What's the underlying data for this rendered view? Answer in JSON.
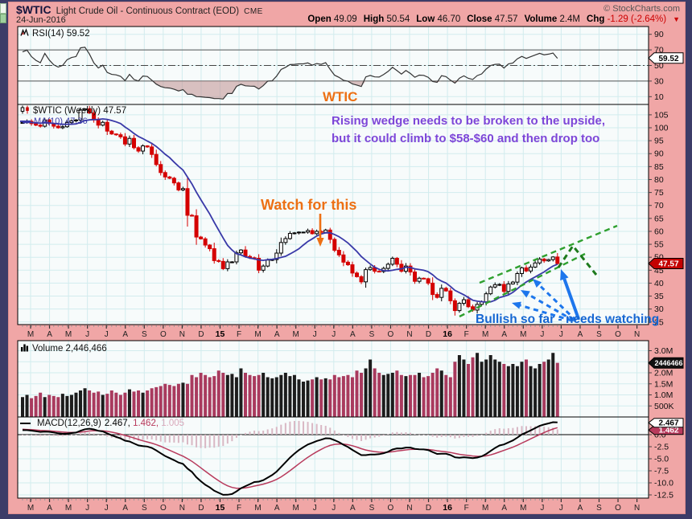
{
  "header": {
    "symbol": "$WTIC",
    "title": "Light Crude Oil - Continuous Contract (EOD)",
    "exchange": "CME",
    "date": "24-Jun-2016",
    "copyright": "© StockCharts.com",
    "quote": [
      {
        "label": "Open",
        "value": "49.09"
      },
      {
        "label": "High",
        "value": "50.54"
      },
      {
        "label": "Low",
        "value": "46.70"
      },
      {
        "label": "Close",
        "value": "47.57"
      },
      {
        "label": "Volume",
        "value": "2.4M"
      },
      {
        "label": "Chg",
        "value": "-1.29 (-2.64%)",
        "negative": true
      }
    ]
  },
  "panels": {
    "rsi": {
      "label": "RSI(14) 59.52",
      "marker": "59.52"
    },
    "main": {
      "label": "$WTIC (Weekly) 47.57",
      "ma_label": "MA(10) 47.36",
      "marker": "47.57"
    },
    "volume": {
      "label": "Volume 2,446,466",
      "marker": "2446466"
    },
    "macd": {
      "label": "MACD(12,26,9)",
      "values": [
        {
          "text": "2.467,",
          "color": "#000000"
        },
        {
          "text": "1.462,",
          "color": "#b83a5c"
        },
        {
          "text": "1.005",
          "color": "#d9a8ba"
        }
      ],
      "marker_macd": "2.467",
      "marker_signal": "1.462"
    }
  },
  "annotations": {
    "wtic": "WTIC",
    "wedge_line1": "Rising wedge needs to be broken to the upside,",
    "wedge_line2": "but it could climb to $58-$60 and then drop too",
    "watch": "Watch for this",
    "bullish": "Bullish so far - needs watching"
  },
  "colors": {
    "background": "#3c3c68",
    "frame": "#f0a6a6",
    "plot_bg": "#f7fbfb",
    "grid": "#d2ecee",
    "candle_up": "#000000",
    "candle_down": "#d40000",
    "ma": "#3939a8",
    "volume_up": "#1c1c1c",
    "volume_down": "#a93a5e",
    "macd_line": "#000000",
    "signal_line": "#b83a5c",
    "hist": "#d9b8c4",
    "rsi_line": "#333333",
    "rsi_fill": "#c09090",
    "wedge": "#2fa02f",
    "wedge_dark": "#1d7a1d",
    "arrows": "#1d76ec",
    "orange": "#ed7014",
    "purple": "#7d46d8",
    "blue_note": "#1566d2",
    "marker_price_bg": "#c40000",
    "marker_vol_bg": "#111111"
  },
  "chart_data": {
    "type": "candlestick",
    "symbol": "$WTIC",
    "timeframe": "Weekly",
    "title": "Light Crude Oil - Continuous Contract (EOD) CME",
    "x_months": [
      "M",
      "A",
      "M",
      "J",
      "J",
      "A",
      "S",
      "O",
      "N",
      "D",
      "15",
      "F",
      "M",
      "A",
      "M",
      "J",
      "J",
      "A",
      "S",
      "O",
      "N",
      "D",
      "16",
      "F",
      "M",
      "A",
      "M",
      "J",
      "J",
      "A",
      "S",
      "O",
      "N"
    ],
    "bold_months": [
      "15",
      "16"
    ],
    "warmup_closes": [
      96,
      97,
      98,
      99,
      100,
      100.5,
      101,
      101.5,
      101,
      100.5,
      101,
      101.5,
      102,
      102.5,
      102,
      101.5,
      101,
      101.5,
      102,
      102.5,
      102,
      101.5,
      102,
      102.5,
      102,
      101.8
    ],
    "closes": [
      102,
      102.5,
      101.6,
      101,
      100.6,
      103,
      101.7,
      100.6,
      100,
      100.4,
      102,
      102.7,
      103,
      106.9,
      107.3,
      105.7,
      103,
      101,
      102.1,
      98.7,
      97.6,
      97.3,
      96.5,
      93.7,
      95.9,
      92.3,
      91,
      93,
      92.6,
      89.7,
      85.8,
      82.7,
      81,
      80.5,
      78.7,
      76,
      76.5,
      66.2,
      66,
      57.8,
      57.1,
      54.7,
      53.3,
      48.7,
      48.4,
      45.6,
      48.2,
      48.2,
      51.7,
      52.8,
      50.3,
      49.8,
      49.6,
      45,
      46.6,
      48.9,
      49.1,
      51.6,
      55.7,
      57.2,
      59.2,
      59.4,
      59.7,
      59.7,
      60.3,
      59.1,
      60,
      59.6,
      60.5,
      56.9,
      52.7,
      50.9,
      48.1,
      47.1,
      43.9,
      42.5,
      40.5,
      45.2,
      46,
      44.6,
      44.5,
      45.7,
      47.3,
      49.6,
      47.3,
      44.6,
      46.6,
      44.3,
      40.7,
      41.9,
      41.7,
      40,
      35.6,
      34.5,
      38,
      37,
      33.2,
      29.4,
      32.2,
      33.6,
      30.9,
      29.6,
      31.8,
      32.8,
      35.9,
      38.5,
      39.4,
      39.5,
      36.8,
      39.7,
      40.4,
      43.7,
      45.9,
      44.7,
      46.2,
      47.8,
      49.3,
      48.6,
      49.1,
      50.1,
      47.57
    ],
    "volumes_millions": [
      0.9,
      1.0,
      0.85,
      0.95,
      1.1,
      0.9,
      1.0,
      0.95,
      0.9,
      1.05,
      0.95,
      1.0,
      1.1,
      1.2,
      1.3,
      1.2,
      1.1,
      1.15,
      1.0,
      1.05,
      1.2,
      1.1,
      1.0,
      1.1,
      1.25,
      1.15,
      1.2,
      1.1,
      1.2,
      1.3,
      1.35,
      1.4,
      1.5,
      1.45,
      1.4,
      1.5,
      1.55,
      1.5,
      1.9,
      1.8,
      2.0,
      1.9,
      1.8,
      1.85,
      2.1,
      2.0,
      1.9,
      1.95,
      1.8,
      2.2,
      2.0,
      1.9,
      1.85,
      1.9,
      2.0,
      1.8,
      1.75,
      1.8,
      1.9,
      2.0,
      1.85,
      1.9,
      1.7,
      1.6,
      1.65,
      1.7,
      1.8,
      1.7,
      1.75,
      1.7,
      1.9,
      1.8,
      1.85,
      1.9,
      1.8,
      2.1,
      2.0,
      2.2,
      2.6,
      2.2,
      2.0,
      1.9,
      1.95,
      2.0,
      2.1,
      1.9,
      1.85,
      1.9,
      1.9,
      2.0,
      1.8,
      1.85,
      2.0,
      2.2,
      2.1,
      1.9,
      1.8,
      2.5,
      2.8,
      2.6,
      2.4,
      2.7,
      2.9,
      2.5,
      2.6,
      2.8,
      2.6,
      2.5,
      2.4,
      2.3,
      2.4,
      2.3,
      2.5,
      2.6,
      2.3,
      2.2,
      2.4,
      2.5,
      2.6,
      2.9,
      2.45
    ],
    "last_close": 47.57,
    "ma10_last": 47.36,
    "rsi_last": 59.52,
    "macd_last": {
      "macd": 2.467,
      "signal": 1.462,
      "hist": 1.005
    },
    "price_axis": {
      "min": 25,
      "max": 105,
      "step": 5
    },
    "rsi_axis": [
      90,
      70,
      50,
      30,
      10
    ],
    "rsi_levels": {
      "overbought": 70,
      "mid": 50,
      "oversold": 30
    },
    "volume_axis": [
      {
        "label": "3.0M",
        "v": 3.0
      },
      {
        "label": "2.0M",
        "v": 2.0
      },
      {
        "label": "1.5M",
        "v": 1.5
      },
      {
        "label": "1.0M",
        "v": 1.0
      },
      {
        "label": "500K",
        "v": 0.5
      }
    ],
    "macd_axis": [
      {
        "label": "0.0",
        "v": 0
      },
      {
        "label": "-2.5",
        "v": -2.5
      },
      {
        "label": "-5.0",
        "v": -5
      },
      {
        "label": "-7.5",
        "v": -7.5
      },
      {
        "label": "-10.0",
        "v": -10
      },
      {
        "label": "-12.5",
        "v": -12.5
      }
    ]
  }
}
